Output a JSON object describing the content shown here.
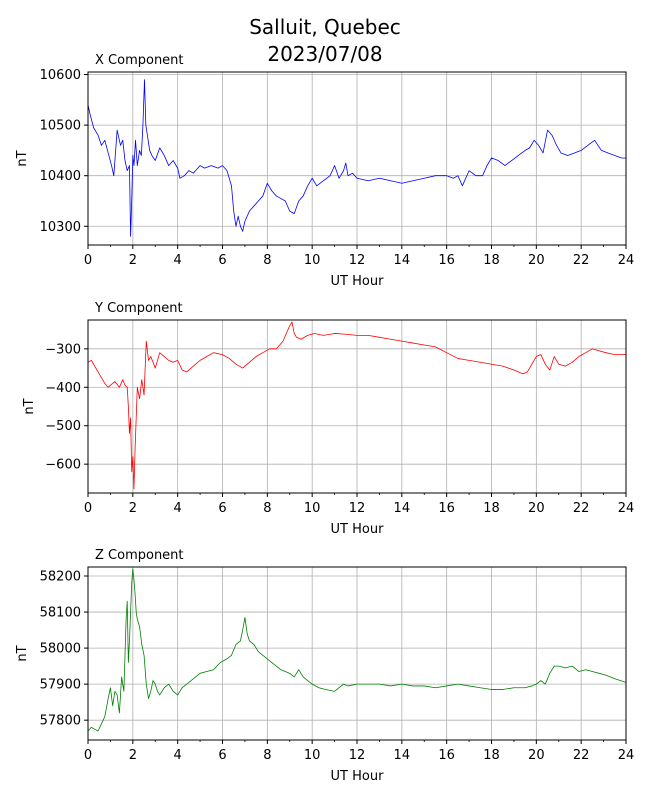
{
  "figure": {
    "title_line1": "Salluit, Quebec",
    "title_line2": "2023/07/08"
  },
  "chart_data": [
    {
      "type": "line",
      "title": "X Component",
      "xlabel": "UT Hour",
      "ylabel": "nT",
      "xlim": [
        0,
        24
      ],
      "ylim": [
        10263,
        10605
      ],
      "xticks": [
        0,
        2,
        4,
        6,
        8,
        10,
        12,
        14,
        16,
        18,
        20,
        22,
        24
      ],
      "yticks": [
        10300,
        10400,
        10500,
        10600
      ],
      "grid": true,
      "color": "#0000ff",
      "x": [
        0,
        0.1,
        0.25,
        0.45,
        0.6,
        0.75,
        0.9,
        1.05,
        1.15,
        1.3,
        1.45,
        1.55,
        1.65,
        1.75,
        1.85,
        1.9,
        1.95,
        2.0,
        2.05,
        2.12,
        2.2,
        2.3,
        2.38,
        2.45,
        2.52,
        2.58,
        2.65,
        2.75,
        2.85,
        3.0,
        3.2,
        3.4,
        3.6,
        3.8,
        4.0,
        4.1,
        4.3,
        4.5,
        4.7,
        5.0,
        5.2,
        5.5,
        5.8,
        6.0,
        6.2,
        6.4,
        6.5,
        6.6,
        6.7,
        6.8,
        6.9,
        7.0,
        7.2,
        7.4,
        7.6,
        7.8,
        8.0,
        8.2,
        8.4,
        8.6,
        8.8,
        9.0,
        9.2,
        9.4,
        9.6,
        9.8,
        10.0,
        10.2,
        10.5,
        10.8,
        11.0,
        11.2,
        11.4,
        11.5,
        11.6,
        11.8,
        12.0,
        12.5,
        13.0,
        13.5,
        14.0,
        14.5,
        15.0,
        15.5,
        16.0,
        16.3,
        16.5,
        16.7,
        17.0,
        17.3,
        17.6,
        17.8,
        18.0,
        18.3,
        18.6,
        18.9,
        19.2,
        19.5,
        19.7,
        19.9,
        20.1,
        20.3,
        20.5,
        20.7,
        20.9,
        21.1,
        21.4,
        21.7,
        22.0,
        22.3,
        22.6,
        22.9,
        23.2,
        23.5,
        23.8,
        24.0
      ],
      "y": [
        10540,
        10520,
        10495,
        10480,
        10460,
        10470,
        10445,
        10420,
        10400,
        10490,
        10460,
        10470,
        10430,
        10410,
        10420,
        10280,
        10350,
        10440,
        10420,
        10470,
        10420,
        10450,
        10440,
        10500,
        10590,
        10500,
        10480,
        10450,
        10440,
        10430,
        10455,
        10440,
        10420,
        10430,
        10415,
        10395,
        10400,
        10410,
        10405,
        10420,
        10415,
        10420,
        10415,
        10420,
        10410,
        10380,
        10330,
        10300,
        10320,
        10300,
        10290,
        10310,
        10330,
        10340,
        10350,
        10360,
        10385,
        10370,
        10360,
        10355,
        10350,
        10330,
        10325,
        10350,
        10360,
        10380,
        10395,
        10380,
        10390,
        10400,
        10420,
        10395,
        10410,
        10425,
        10400,
        10405,
        10395,
        10390,
        10395,
        10390,
        10385,
        10390,
        10395,
        10400,
        10400,
        10395,
        10400,
        10380,
        10410,
        10400,
        10400,
        10420,
        10435,
        10430,
        10420,
        10430,
        10440,
        10450,
        10455,
        10470,
        10460,
        10445,
        10490,
        10480,
        10460,
        10445,
        10440,
        10445,
        10450,
        10460,
        10470,
        10450,
        10445,
        10440,
        10435,
        10435
      ]
    },
    {
      "type": "line",
      "title": "Y Component",
      "xlabel": "UT Hour",
      "ylabel": "nT",
      "xlim": [
        0,
        24
      ],
      "ylim": [
        -675,
        -225
      ],
      "xticks": [
        0,
        2,
        4,
        6,
        8,
        10,
        12,
        14,
        16,
        18,
        20,
        22,
        24
      ],
      "yticks": [
        -300,
        -400,
        -500,
        -600
      ],
      "grid": true,
      "color": "#ff0000",
      "x": [
        0,
        0.15,
        0.3,
        0.45,
        0.6,
        0.75,
        0.9,
        1.0,
        1.2,
        1.4,
        1.55,
        1.65,
        1.75,
        1.8,
        1.85,
        1.9,
        1.95,
        2.0,
        2.05,
        2.1,
        2.2,
        2.3,
        2.4,
        2.5,
        2.6,
        2.7,
        2.8,
        3.0,
        3.2,
        3.4,
        3.6,
        3.8,
        4.0,
        4.2,
        4.4,
        4.6,
        4.8,
        5.0,
        5.3,
        5.6,
        6.0,
        6.3,
        6.6,
        6.9,
        7.2,
        7.5,
        7.8,
        8.1,
        8.4,
        8.7,
        9.0,
        9.1,
        9.2,
        9.3,
        9.5,
        9.8,
        10.1,
        10.5,
        11.0,
        11.5,
        12.0,
        12.5,
        13.0,
        13.5,
        14.0,
        14.5,
        15.0,
        15.5,
        16.0,
        16.5,
        17.0,
        17.5,
        18.0,
        18.5,
        19.0,
        19.4,
        19.6,
        19.8,
        20.0,
        20.2,
        20.4,
        20.6,
        20.8,
        21.0,
        21.3,
        21.6,
        21.9,
        22.2,
        22.5,
        22.8,
        23.1,
        23.5,
        24.0
      ],
      "y": [
        -335,
        -330,
        -345,
        -360,
        -375,
        -390,
        -400,
        -395,
        -385,
        -400,
        -380,
        -395,
        -400,
        -450,
        -520,
        -480,
        -620,
        -580,
        -665,
        -560,
        -400,
        -430,
        -380,
        -420,
        -280,
        -330,
        -320,
        -350,
        -310,
        -320,
        -330,
        -335,
        -330,
        -355,
        -360,
        -350,
        -340,
        -330,
        -320,
        -310,
        -315,
        -325,
        -340,
        -350,
        -335,
        -320,
        -310,
        -300,
        -300,
        -280,
        -240,
        -230,
        -260,
        -270,
        -275,
        -265,
        -260,
        -265,
        -260,
        -262,
        -265,
        -265,
        -270,
        -275,
        -280,
        -285,
        -290,
        -295,
        -310,
        -325,
        -330,
        -335,
        -340,
        -345,
        -355,
        -365,
        -360,
        -340,
        -320,
        -315,
        -340,
        -355,
        -320,
        -340,
        -345,
        -335,
        -320,
        -310,
        -300,
        -305,
        -310,
        -315,
        -315
      ]
    },
    {
      "type": "line",
      "title": "Z Component",
      "xlabel": "UT Hour",
      "ylabel": "nT",
      "xlim": [
        0,
        24
      ],
      "ylim": [
        57745,
        58225
      ],
      "xticks": [
        0,
        2,
        4,
        6,
        8,
        10,
        12,
        14,
        16,
        18,
        20,
        22,
        24
      ],
      "yticks": [
        57800,
        57900,
        58000,
        58100,
        58200
      ],
      "grid": true,
      "color": "#008000",
      "x": [
        0,
        0.15,
        0.3,
        0.45,
        0.6,
        0.75,
        0.9,
        1.0,
        1.1,
        1.2,
        1.3,
        1.4,
        1.5,
        1.6,
        1.7,
        1.75,
        1.8,
        1.85,
        1.9,
        1.95,
        2.0,
        2.05,
        2.1,
        2.15,
        2.2,
        2.3,
        2.4,
        2.5,
        2.6,
        2.7,
        2.8,
        2.9,
        3.0,
        3.1,
        3.2,
        3.4,
        3.6,
        3.8,
        4.0,
        4.2,
        4.4,
        4.6,
        4.8,
        5.0,
        5.3,
        5.6,
        5.9,
        6.2,
        6.4,
        6.6,
        6.8,
        6.9,
        7.0,
        7.1,
        7.2,
        7.4,
        7.6,
        7.8,
        8.0,
        8.2,
        8.4,
        8.6,
        8.8,
        9.0,
        9.2,
        9.4,
        9.6,
        9.8,
        10.0,
        10.3,
        10.6,
        11.0,
        11.2,
        11.4,
        11.6,
        12.0,
        12.5,
        13.0,
        13.5,
        14.0,
        14.5,
        15.0,
        15.5,
        16.0,
        16.5,
        17.0,
        17.5,
        18.0,
        18.5,
        19.0,
        19.5,
        19.8,
        20.0,
        20.2,
        20.4,
        20.6,
        20.8,
        21.0,
        21.3,
        21.6,
        21.9,
        22.2,
        22.5,
        22.8,
        23.1,
        23.5,
        24.0
      ],
      "y": [
        57770,
        57780,
        57775,
        57770,
        57790,
        57810,
        57860,
        57890,
        57840,
        57880,
        57870,
        57820,
        57920,
        57880,
        58080,
        58130,
        57960,
        58020,
        58100,
        58180,
        58220,
        58190,
        58150,
        58100,
        58080,
        58060,
        58010,
        57980,
        57900,
        57860,
        57880,
        57910,
        57900,
        57880,
        57870,
        57890,
        57900,
        57880,
        57870,
        57890,
        57900,
        57910,
        57920,
        57930,
        57935,
        57940,
        57960,
        57970,
        57980,
        58010,
        58020,
        58050,
        58085,
        58040,
        58020,
        58010,
        57990,
        57980,
        57970,
        57960,
        57950,
        57940,
        57935,
        57930,
        57920,
        57940,
        57920,
        57910,
        57900,
        57890,
        57885,
        57880,
        57890,
        57900,
        57895,
        57900,
        57900,
        57900,
        57895,
        57900,
        57895,
        57895,
        57890,
        57895,
        57900,
        57895,
        57890,
        57885,
        57885,
        57890,
        57890,
        57895,
        57900,
        57910,
        57900,
        57930,
        57950,
        57950,
        57945,
        57950,
        57935,
        57940,
        57935,
        57930,
        57925,
        57915,
        57905
      ]
    }
  ]
}
